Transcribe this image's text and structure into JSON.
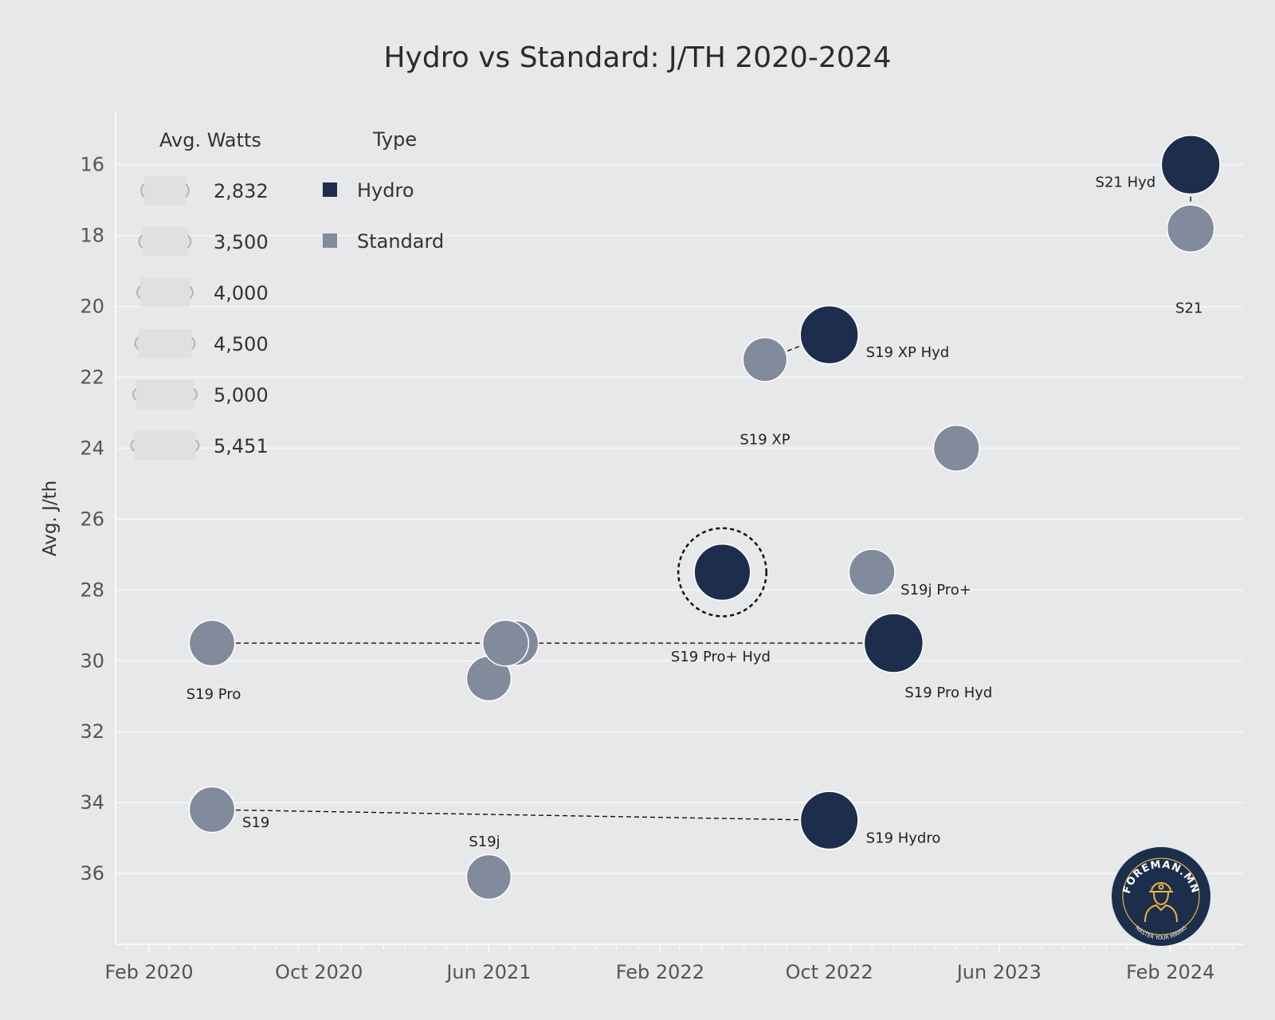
{
  "title": "Hydro vs Standard: J/TH 2020-2024",
  "colors": {
    "hydro": "#1d2e4d",
    "standard": "#818b9c",
    "background": "#e6e8e9",
    "grid": "#f4f5f6"
  },
  "chart_data": {
    "type": "scatter",
    "title": "Hydro vs Standard: J/TH 2020-2024",
    "xlabel": "",
    "ylabel": "Avg. J/th",
    "xlim": [
      "2019-12-15",
      "2024-05-15"
    ],
    "ylim": [
      14.5,
      38
    ],
    "y_reversed": true,
    "x_ticks": [
      "2020-02-01",
      "2020-10-01",
      "2021-06-01",
      "2022-02-01",
      "2022-10-01",
      "2023-06-01",
      "2024-02-01"
    ],
    "x_tick_labels": [
      "Feb 2020",
      "Oct 2020",
      "Jun 2021",
      "Feb 2022",
      "Oct 2022",
      "Jun 2023",
      "Feb 2024"
    ],
    "y_ticks": [
      16,
      18,
      20,
      22,
      24,
      26,
      28,
      30,
      32,
      34,
      36
    ],
    "grid": true,
    "legend": {
      "size_title": "Avg. Watts",
      "size_values": [
        "2,832",
        "3,500",
        "4,000",
        "4,500",
        "5,000",
        "5,451"
      ],
      "color_title": "Type",
      "color_entries": [
        {
          "label": "Hydro",
          "type": "hydro"
        },
        {
          "label": "Standard",
          "type": "standard"
        }
      ],
      "placement": "top-left"
    },
    "points": [
      {
        "label": "S19 Pro",
        "date": "2020-05-01",
        "jth": 29.5,
        "watts": 3250,
        "type": "standard"
      },
      {
        "label": "S19",
        "date": "2020-05-01",
        "jth": 34.2,
        "watts": 3250,
        "type": "standard"
      },
      {
        "label": "",
        "date": "2021-06-01",
        "jth": 30.5,
        "watts": 3100,
        "type": "standard"
      },
      {
        "label": "",
        "date": "2021-06-01",
        "jth": 36.1,
        "watts": 3100,
        "type": "standard"
      },
      {
        "label": "",
        "date": "2021-07-10",
        "jth": 29.5,
        "watts": 3100,
        "type": "standard"
      },
      {
        "label": "",
        "date": "2021-06-25",
        "jth": 29.5,
        "watts": 3300,
        "type": "standard"
      },
      {
        "label": "S19 Pro+ Hyd",
        "date": "2022-05-01",
        "jth": 27.5,
        "watts": 5000,
        "type": "hydro"
      },
      {
        "label": "S19 XP",
        "date": "2022-07-01",
        "jth": 21.5,
        "watts": 3000,
        "type": "standard"
      },
      {
        "label": "S19 XP Hyd",
        "date": "2022-10-01",
        "jth": 20.8,
        "watts": 5300,
        "type": "hydro"
      },
      {
        "label": "S19 Hydro",
        "date": "2022-10-01",
        "jth": 34.5,
        "watts": 5250,
        "type": "hydro"
      },
      {
        "label": "S19j Pro+",
        "date": "2022-12-01",
        "jth": 27.5,
        "watts": 3300,
        "type": "standard"
      },
      {
        "label": "S19 Pro Hyd",
        "date": "2023-01-01",
        "jth": 29.5,
        "watts": 5451,
        "type": "hydro"
      },
      {
        "label": "",
        "date": "2023-04-01",
        "jth": 24.0,
        "watts": 3300,
        "type": "standard"
      },
      {
        "label": "S21 Hyd",
        "date": "2024-03-01",
        "jth": 16.0,
        "watts": 5400,
        "type": "hydro"
      },
      {
        "label": "S21",
        "date": "2024-03-01",
        "jth": 17.8,
        "watts": 3500,
        "type": "standard"
      }
    ],
    "highlighted_point": "S19 Pro+ Hyd",
    "connectors": [
      [
        "S19 Pro",
        "S19 Pro Hyd"
      ],
      [
        "S19",
        "S19 Hydro"
      ],
      [
        "S19 XP",
        "S19 XP Hyd"
      ],
      [
        "S21 Hyd",
        "S21"
      ]
    ]
  },
  "logo": {
    "text": "FOREMAN.MN",
    "tagline": "MASTER YOUR MINING"
  }
}
